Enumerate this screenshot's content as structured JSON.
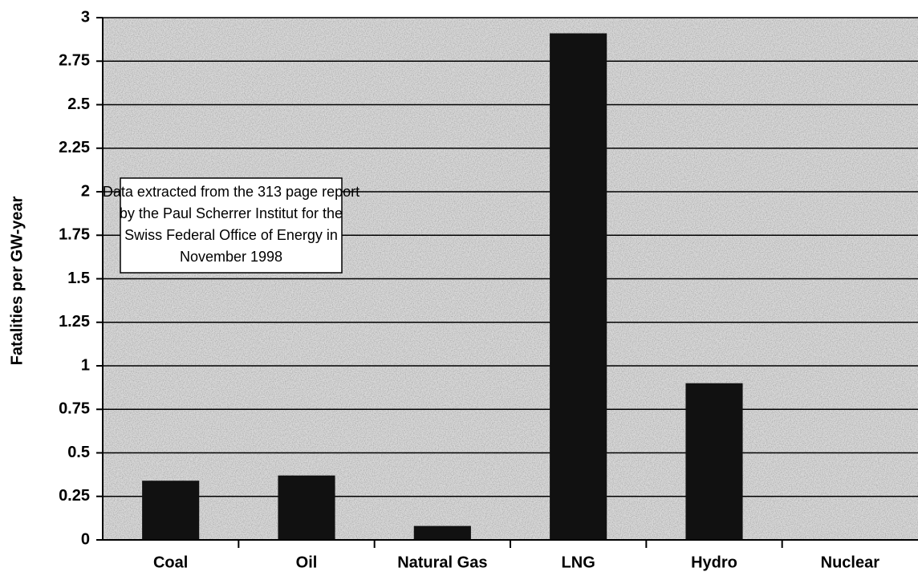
{
  "chart_data": {
    "type": "bar",
    "y_label": "Fatalities per GW-year",
    "annotation": [
      "Data extracted from the 313 page report",
      "by the Paul Scherrer Institut for the",
      "Swiss Federal Office of Energy in",
      "November 1998"
    ],
    "categories": [
      "Coal",
      "Oil",
      "Natural Gas",
      "LNG",
      "Hydro",
      "Nuclear"
    ],
    "values": [
      0.34,
      0.37,
      0.08,
      2.91,
      0.9,
      0
    ],
    "color": "#111111",
    "ylim": [
      0,
      3
    ],
    "yticks": [
      0,
      0.25,
      0.5,
      0.75,
      1,
      1.25,
      1.5,
      1.75,
      2,
      2.25,
      2.5,
      2.75,
      3
    ],
    "grid": true
  }
}
